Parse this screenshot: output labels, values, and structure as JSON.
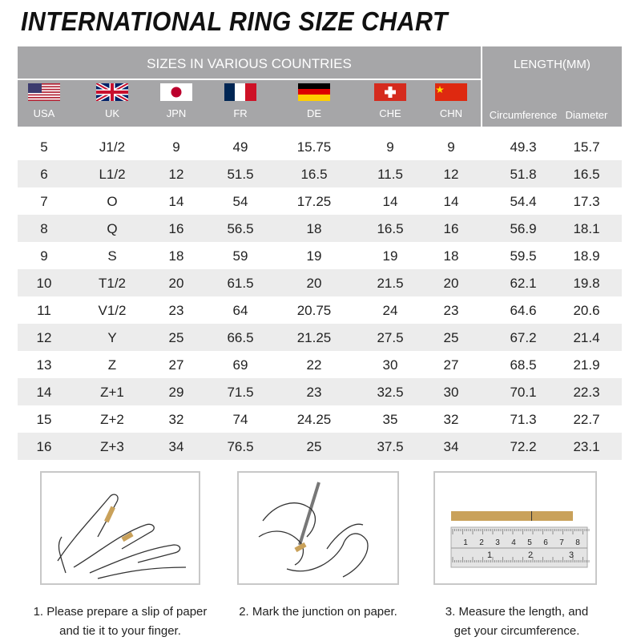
{
  "title": "INTERNATIONAL RING SIZE CHART",
  "header": {
    "sizes_title": "SIZES IN VARIOUS COUNTRIES",
    "length_title": "LENGTH(MM)",
    "countries": [
      {
        "label": "USA",
        "flag": "usa-flag"
      },
      {
        "label": "UK",
        "flag": "uk-flag"
      },
      {
        "label": "JPN",
        "flag": "japan-flag"
      },
      {
        "label": "FR",
        "flag": "france-flag"
      },
      {
        "label": "DE",
        "flag": "germany-flag"
      },
      {
        "label": "CHE",
        "flag": "switzerland-flag"
      },
      {
        "label": "CHN",
        "flag": "china-flag"
      }
    ],
    "length_cols": [
      "Circumference",
      "Diameter"
    ]
  },
  "rows": [
    [
      "5",
      "J1/2",
      "9",
      "49",
      "15.75",
      "9",
      "9",
      "49.3",
      "15.7"
    ],
    [
      "6",
      "L1/2",
      "12",
      "51.5",
      "16.5",
      "11.5",
      "12",
      "51.8",
      "16.5"
    ],
    [
      "7",
      "O",
      "14",
      "54",
      "17.25",
      "14",
      "14",
      "54.4",
      "17.3"
    ],
    [
      "8",
      "Q",
      "16",
      "56.5",
      "18",
      "16.5",
      "16",
      "56.9",
      "18.1"
    ],
    [
      "9",
      "S",
      "18",
      "59",
      "19",
      "19",
      "18",
      "59.5",
      "18.9"
    ],
    [
      "10",
      "T1/2",
      "20",
      "61.5",
      "20",
      "21.5",
      "20",
      "62.1",
      "19.8"
    ],
    [
      "11",
      "V1/2",
      "23",
      "64",
      "20.75",
      "24",
      "23",
      "64.6",
      "20.6"
    ],
    [
      "12",
      "Y",
      "25",
      "66.5",
      "21.25",
      "27.5",
      "25",
      "67.2",
      "21.4"
    ],
    [
      "13",
      "Z",
      "27",
      "69",
      "22",
      "30",
      "27",
      "68.5",
      "21.9"
    ],
    [
      "14",
      "Z+1",
      "29",
      "71.5",
      "23",
      "32.5",
      "30",
      "70.1",
      "22.3"
    ],
    [
      "15",
      "Z+2",
      "32",
      "74",
      "24.25",
      "35",
      "32",
      "71.3",
      "22.7"
    ],
    [
      "16",
      "Z+3",
      "34",
      "76.5",
      "25",
      "37.5",
      "34",
      "72.2",
      "23.1"
    ]
  ],
  "steps": [
    {
      "line1": "1. Please prepare a slip of paper",
      "line2": "and tie it to your finger."
    },
    {
      "line1": "2. Mark the junction on paper.",
      "line2": ""
    },
    {
      "line1": "3. Measure the length, and",
      "line2": "get your circumference."
    }
  ],
  "ruler": {
    "top_numbers": [
      "1",
      "2",
      "3",
      "4",
      "5",
      "6",
      "7",
      "8"
    ],
    "bottom_numbers": [
      "1",
      "2",
      "3"
    ]
  },
  "colors": {
    "header": "#a6a6a8",
    "alt_row": "#ececec",
    "paper": "#c9a15a"
  }
}
